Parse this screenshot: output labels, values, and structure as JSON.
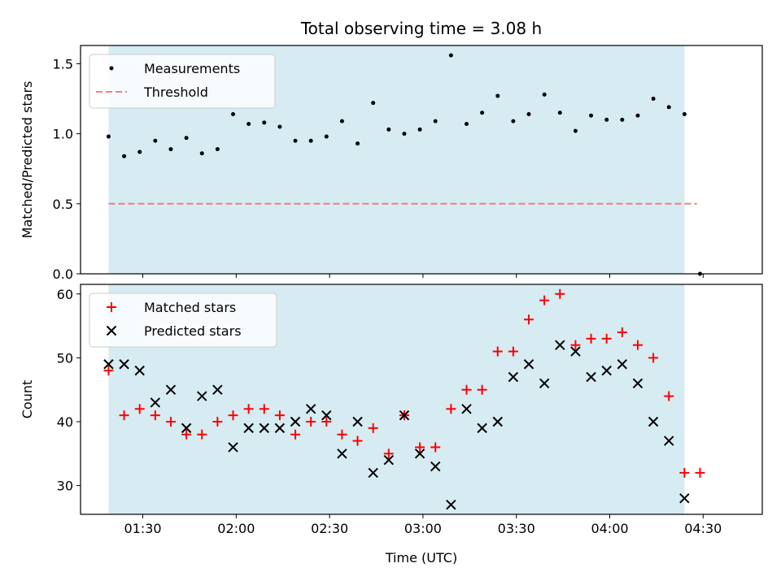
{
  "title": "Total observing time = 3.08 h",
  "chart_data": [
    {
      "type": "scatter",
      "ylabel": "Matched/Predicted stars",
      "ylim": [
        0.0,
        1.63
      ],
      "yticks": [
        "0.0",
        "0.5",
        "1.0",
        "1.5"
      ],
      "ytick_values": [
        0.0,
        0.5,
        1.0,
        1.5
      ],
      "legend_location": "upper-left",
      "legend": [
        "Measurements",
        "Threshold"
      ],
      "threshold": {
        "name": "Threshold",
        "value": 0.5,
        "x_start": "01:19",
        "x_end": "04:28",
        "color": "#f08080"
      },
      "series": [
        {
          "name": "Measurements",
          "color": "#000000",
          "x": [
            "01:19",
            "01:24",
            "01:29",
            "01:34",
            "01:39",
            "01:44",
            "01:49",
            "01:54",
            "01:59",
            "02:04",
            "02:09",
            "02:14",
            "02:19",
            "02:24",
            "02:29",
            "02:34",
            "02:39",
            "02:44",
            "02:49",
            "02:54",
            "02:59",
            "03:04",
            "03:09",
            "03:14",
            "03:19",
            "03:24",
            "03:29",
            "03:34",
            "03:39",
            "03:44",
            "03:49",
            "03:54",
            "03:59",
            "04:04",
            "04:09",
            "04:14",
            "04:19",
            "04:24",
            "04:29"
          ],
          "y": [
            0.98,
            0.84,
            0.87,
            0.95,
            0.89,
            0.97,
            0.86,
            0.89,
            1.14,
            1.07,
            1.08,
            1.05,
            0.95,
            0.95,
            0.98,
            1.09,
            0.93,
            1.22,
            1.03,
            1.0,
            1.03,
            1.09,
            1.56,
            1.07,
            1.15,
            1.27,
            1.09,
            1.14,
            1.28,
            1.15,
            1.02,
            1.13,
            1.1,
            1.1,
            1.13,
            1.25,
            1.19,
            1.14,
            0.0
          ]
        }
      ]
    },
    {
      "type": "scatter",
      "xlabel": "Time (UTC)",
      "ylabel": "Count",
      "ylim": [
        25.5,
        61.5
      ],
      "yticks": [
        "30",
        "40",
        "50",
        "60"
      ],
      "ytick_values": [
        30,
        40,
        50,
        60
      ],
      "xticks": [
        "01:30",
        "02:00",
        "02:30",
        "03:00",
        "03:30",
        "04:00",
        "04:30"
      ],
      "xtick_values": [
        "01:30",
        "02:00",
        "02:30",
        "03:00",
        "03:30",
        "04:00",
        "04:30"
      ],
      "legend_location": "upper-left",
      "legend": [
        "Matched stars",
        "Predicted stars"
      ],
      "series": [
        {
          "name": "Matched stars",
          "color": "#ff0000",
          "marker": "plus",
          "x": [
            "01:19",
            "01:24",
            "01:29",
            "01:34",
            "01:39",
            "01:44",
            "01:49",
            "01:54",
            "01:59",
            "02:04",
            "02:09",
            "02:14",
            "02:19",
            "02:24",
            "02:29",
            "02:34",
            "02:39",
            "02:44",
            "02:49",
            "02:54",
            "02:59",
            "03:04",
            "03:09",
            "03:14",
            "03:19",
            "03:24",
            "03:29",
            "03:34",
            "03:39",
            "03:44",
            "03:49",
            "03:54",
            "03:59",
            "04:04",
            "04:09",
            "04:14",
            "04:19",
            "04:24",
            "04:29"
          ],
          "y": [
            48,
            41,
            42,
            41,
            40,
            38,
            38,
            40,
            41,
            42,
            42,
            41,
            38,
            40,
            40,
            38,
            37,
            39,
            35,
            41,
            36,
            36,
            42,
            45,
            45,
            51,
            51,
            56,
            59,
            60,
            52,
            53,
            53,
            54,
            52,
            50,
            44,
            32,
            32
          ]
        },
        {
          "name": "Predicted stars",
          "color": "#000000",
          "marker": "x",
          "x": [
            "01:19",
            "01:24",
            "01:29",
            "01:34",
            "01:39",
            "01:44",
            "01:49",
            "01:54",
            "01:59",
            "02:04",
            "02:09",
            "02:14",
            "02:19",
            "02:24",
            "02:29",
            "02:34",
            "02:39",
            "02:44",
            "02:49",
            "02:54",
            "02:59",
            "03:04",
            "03:09",
            "03:14",
            "03:19",
            "03:24",
            "03:29",
            "03:34",
            "03:39",
            "03:44",
            "03:49",
            "03:54",
            "03:59",
            "04:04",
            "04:09",
            "04:14",
            "04:19",
            "04:24"
          ],
          "y": [
            49,
            49,
            48,
            43,
            45,
            39,
            44,
            45,
            36,
            39,
            39,
            39,
            40,
            42,
            41,
            35,
            40,
            32,
            34,
            41,
            35,
            33,
            27,
            42,
            39,
            40,
            47,
            49,
            46,
            52,
            51,
            47,
            48,
            49,
            46,
            40,
            37,
            28
          ]
        }
      ]
    }
  ],
  "observing_window": {
    "start": "01:19",
    "end": "04:24",
    "color": "#add8e6"
  },
  "x_range": [
    "01:10",
    "04:49"
  ]
}
